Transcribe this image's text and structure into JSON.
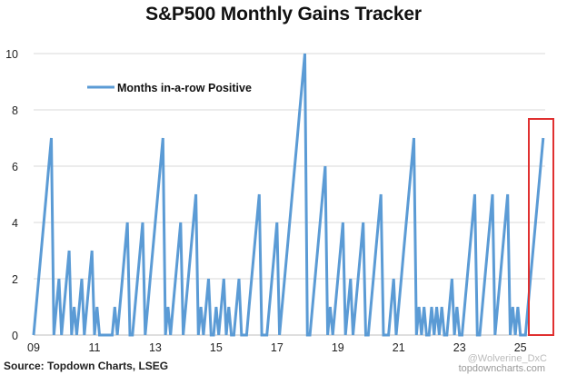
{
  "chart_data": {
    "type": "line",
    "title": "S&P500 Monthly Gains Tracker",
    "xlabel": "",
    "ylabel": "",
    "ylim": [
      0,
      10
    ],
    "yticks": [
      "0",
      "2",
      "4",
      "6",
      "8",
      "10"
    ],
    "xticks": [
      "09",
      "11",
      "13",
      "15",
      "17",
      "19",
      "21",
      "23",
      "25"
    ],
    "grid": true,
    "legend_position": "top-left",
    "highlight": "red box around final 2025 streak",
    "colors": {
      "series": "#5b9bd5",
      "highlight": "#e03030",
      "grid": "#d9d9d9"
    },
    "series": [
      {
        "name": "Months in-a-row Positive",
        "values": [
          0,
          1,
          2,
          3,
          4,
          5,
          6,
          7,
          0,
          1,
          2,
          0,
          1,
          2,
          3,
          0,
          1,
          0,
          1,
          2,
          0,
          1,
          2,
          3,
          0,
          1,
          0,
          0,
          0,
          0,
          0,
          0,
          1,
          0,
          1,
          2,
          3,
          4,
          0,
          0,
          1,
          2,
          3,
          4,
          0,
          1,
          2,
          3,
          4,
          5,
          6,
          7,
          0,
          1,
          0,
          1,
          2,
          3,
          4,
          0,
          1,
          2,
          3,
          4,
          5,
          0,
          1,
          0,
          1,
          2,
          0,
          0,
          1,
          0,
          1,
          2,
          0,
          1,
          0,
          0,
          1,
          2,
          0,
          0,
          0,
          1,
          2,
          3,
          4,
          5,
          0,
          0,
          0,
          1,
          2,
          3,
          4,
          0,
          1,
          2,
          3,
          4,
          5,
          6,
          7,
          8,
          9,
          10,
          0,
          0,
          1,
          2,
          3,
          4,
          5,
          6,
          0,
          1,
          0,
          1,
          2,
          3,
          4,
          0,
          1,
          2,
          0,
          1,
          2,
          3,
          4,
          0,
          0,
          1,
          2,
          3,
          4,
          5,
          0,
          0,
          0,
          1,
          2,
          0,
          1,
          2,
          3,
          4,
          5,
          6,
          7,
          0,
          1,
          0,
          1,
          0,
          0,
          1,
          0,
          1,
          0,
          1,
          0,
          0,
          1,
          2,
          0,
          1,
          0,
          0,
          1,
          2,
          3,
          4,
          5,
          0,
          0,
          1,
          2,
          3,
          4,
          5,
          0,
          1,
          2,
          3,
          4,
          5,
          0,
          1,
          0,
          1,
          0,
          0,
          0,
          1,
          2,
          3,
          4,
          5,
          6,
          7
        ]
      }
    ],
    "x_start": "2009-01",
    "x_frequency": "monthly"
  },
  "footer": {
    "source": "Source: Topdown Charts, LSEG",
    "watermark_user": "@Wolverine_DxC",
    "watermark_site": "topdowncharts.com"
  }
}
